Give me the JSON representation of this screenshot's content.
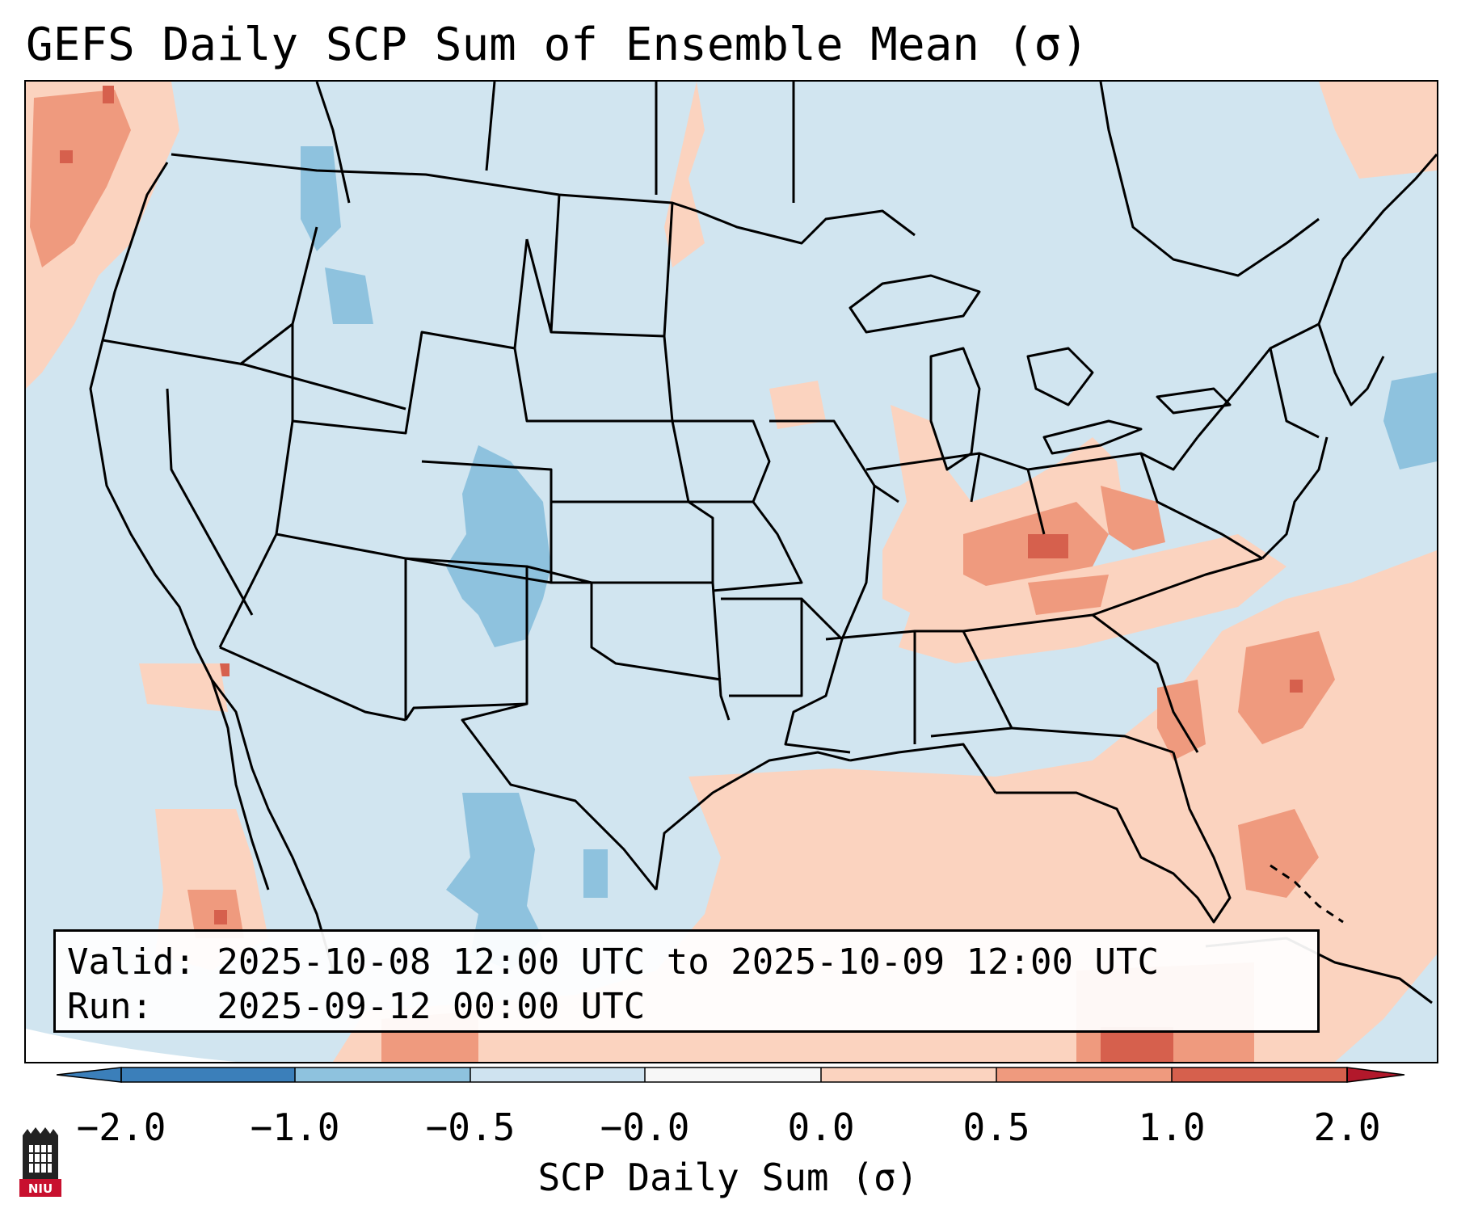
{
  "title": "GEFS Daily SCP Sum of Ensemble Mean (σ)",
  "info": {
    "valid_line": "Valid: 2025-10-08 12:00 UTC to 2025-10-09 12:00 UTC",
    "run_line": "Run:   2025-09-12 00:00 UTC"
  },
  "colorbar": {
    "label": "SCP Daily Sum (σ)",
    "ticks": [
      "−2.0",
      "−1.0",
      "−0.5",
      "−0.0",
      "0.0",
      "0.5",
      "1.0",
      "2.0"
    ],
    "colors": [
      "#3b7fba",
      "#8ec2de",
      "#cfe3f0",
      "#f7f7f7",
      "#fbd3bf",
      "#ef9a7e",
      "#d6604d",
      "#b2182b"
    ]
  },
  "logo_text": "NIU",
  "map": {
    "ocean_color": "#d1e5f0",
    "outside_color": "#ffffff",
    "border_color": "#000000",
    "anomaly_regions": [
      {
        "name": "pacific-northwest-positive",
        "level": 0.5
      },
      {
        "name": "colorado-negative",
        "level": -0.5
      },
      {
        "name": "tennessee-valley-positive",
        "level": 1.0
      },
      {
        "name": "kentucky-max",
        "level": 1.5
      },
      {
        "name": "gulf-of-mexico-positive",
        "level": 0.5
      },
      {
        "name": "western-atlantic-positive",
        "level": 0.5
      },
      {
        "name": "carolina-offshore-max",
        "level": 1.0
      },
      {
        "name": "west-texas-negative",
        "level": -0.5
      }
    ]
  }
}
